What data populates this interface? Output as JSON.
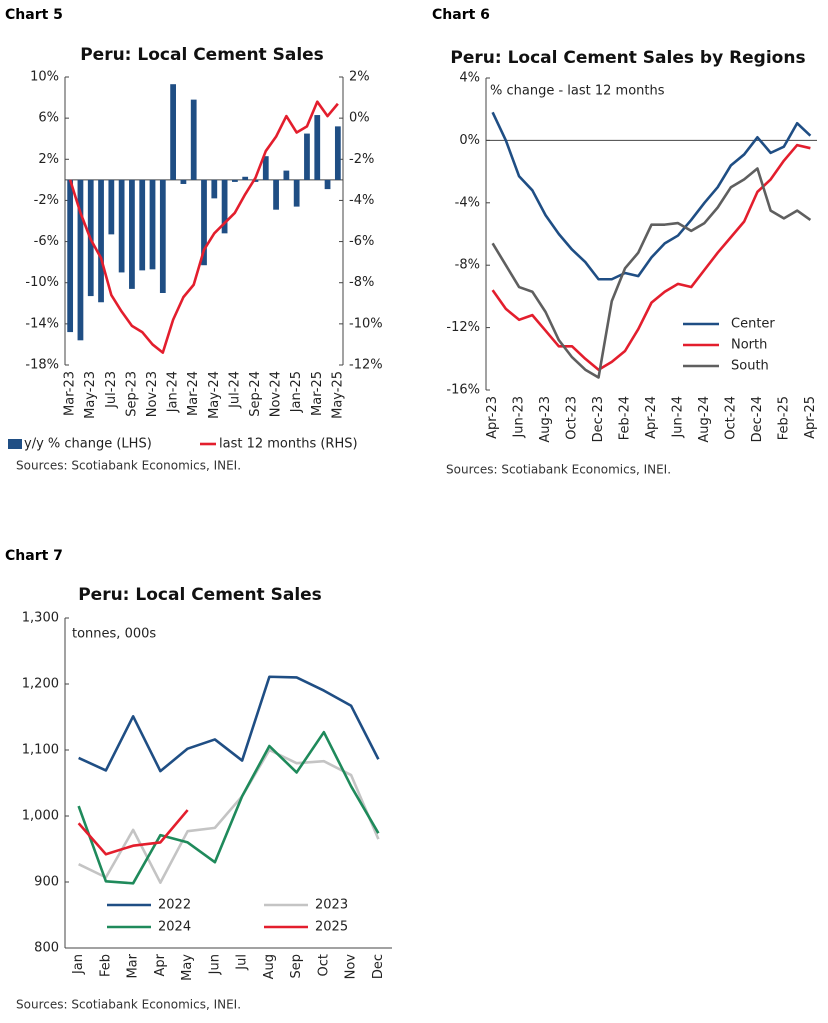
{
  "chart_data": [
    {
      "type": "combo",
      "label": "Chart 5",
      "title": "Peru: Local Cement Sales",
      "source": "Sources: Scotiabank Economics, INEI.",
      "categories": [
        "Mar-23",
        null,
        "May-23",
        null,
        "Jul-23",
        null,
        "Sep-23",
        null,
        "Nov-23",
        null,
        "Jan-24",
        null,
        "Mar-24",
        null,
        "May-24",
        null,
        "Jul-24",
        null,
        "Sep-24",
        null,
        "Nov-24",
        null,
        "Jan-25",
        null,
        "Mar-25",
        null,
        "May-25"
      ],
      "ylim": [
        -18,
        10
      ],
      "yticks": [
        {
          "value": 10,
          "label": "10%"
        },
        {
          "value": 6,
          "label": "6%"
        },
        {
          "value": 2,
          "label": "2%"
        },
        {
          "value": -2,
          "label": "-2%"
        },
        {
          "value": -6,
          "label": "-6%"
        },
        {
          "value": -10,
          "label": "-10%"
        },
        {
          "value": -14,
          "label": "-14%"
        },
        {
          "value": -18,
          "label": "-18%"
        }
      ],
      "y2lim": [
        -12,
        2
      ],
      "y2ticks": [
        {
          "value": 2,
          "label": "2%"
        },
        {
          "value": 0,
          "label": "0%"
        },
        {
          "value": -2,
          "label": "-2%"
        },
        {
          "value": -4,
          "label": "-4%"
        },
        {
          "value": -6,
          "label": "-6%"
        },
        {
          "value": -8,
          "label": "-8%"
        },
        {
          "value": -10,
          "label": "-10%"
        },
        {
          "value": -12,
          "label": "-12%"
        }
      ],
      "series": [
        {
          "name": "y/y % change (LHS)",
          "type": "bar",
          "color": "#1f4e84",
          "values": [
            -14.8,
            -15.6,
            -11.3,
            -11.9,
            -5.3,
            -9.0,
            -10.6,
            -8.8,
            -8.7,
            -11.0,
            9.3,
            -0.4,
            7.8,
            -8.3,
            -1.8,
            -5.2,
            -0.2,
            0.3,
            -0.2,
            2.3,
            -2.9,
            0.9,
            -2.6,
            4.5,
            6.3,
            -0.9,
            5.2
          ]
        },
        {
          "name": "last 12 months (RHS)",
          "type": "line",
          "axis": "y2",
          "color": "#e31e2d",
          "values": [
            -3.0,
            -4.6,
            -5.9,
            -6.8,
            -8.6,
            -9.4,
            -10.1,
            -10.4,
            -11.0,
            -11.4,
            -9.8,
            -8.7,
            -8.1,
            -6.4,
            -5.6,
            -5.1,
            -4.6,
            -3.7,
            -2.9,
            -1.6,
            -0.9,
            0.1,
            -0.7,
            -0.4,
            0.8,
            0.1,
            0.7
          ]
        }
      ]
    },
    {
      "type": "line",
      "label": "Chart 6",
      "title": "Peru: Local Cement Sales by Regions",
      "annotation": "% change - last 12 months",
      "source": "Sources: Scotiabank Economics, INEI.",
      "legend": "lower-right",
      "categories": [
        "Apr-23",
        null,
        "Jun-23",
        null,
        "Aug-23",
        null,
        "Oct-23",
        null,
        "Dec-23",
        null,
        "Feb-24",
        null,
        "Apr-24",
        null,
        "Jun-24",
        null,
        "Aug-24",
        null,
        "Oct-24",
        null,
        "Dec-24",
        null,
        "Feb-25",
        null,
        "Apr-25"
      ],
      "ylim": [
        -16,
        4
      ],
      "yticks": [
        {
          "value": 4,
          "label": "4%"
        },
        {
          "value": 0,
          "label": "0%"
        },
        {
          "value": -4,
          "label": "-4%"
        },
        {
          "value": -8,
          "label": "-8%"
        },
        {
          "value": -12,
          "label": "-12%"
        },
        {
          "value": -16,
          "label": "-16%"
        }
      ],
      "series": [
        {
          "name": "Center",
          "color": "#1f4e84",
          "values": [
            1.8,
            0.0,
            -2.3,
            -3.2,
            -4.8,
            -6.0,
            -7.0,
            -7.8,
            -8.9,
            -8.9,
            -8.5,
            -8.7,
            -7.5,
            -6.6,
            -6.1,
            -5.1,
            -4.0,
            -3.0,
            -1.6,
            -0.9,
            0.2,
            -0.8,
            -0.4,
            1.1,
            0.3
          ]
        },
        {
          "name": "North",
          "color": "#e31e2d",
          "values": [
            -9.6,
            -10.8,
            -11.5,
            -11.2,
            -12.2,
            -13.2,
            -13.2,
            -14.0,
            -14.7,
            -14.2,
            -13.5,
            -12.1,
            -10.4,
            -9.7,
            -9.2,
            -9.4,
            -8.3,
            -7.2,
            -6.2,
            -5.2,
            -3.3,
            -2.5,
            -1.3,
            -0.3,
            -0.5
          ]
        },
        {
          "name": "South",
          "color": "#5f5f5f",
          "values": [
            -6.6,
            -8.0,
            -9.4,
            -9.7,
            -11.0,
            -12.8,
            -13.9,
            -14.7,
            -15.2,
            -10.3,
            -8.2,
            -7.2,
            -5.4,
            -5.4,
            -5.3,
            -5.8,
            -5.3,
            -4.3,
            -3.0,
            -2.5,
            -1.8,
            -4.5,
            -5.0,
            -4.5,
            -5.1
          ]
        }
      ]
    },
    {
      "type": "line",
      "label": "Chart 7",
      "title": "Peru: Local Cement Sales",
      "annotation": "tonnes, 000s",
      "source": "Sources: Scotiabank Economics, INEI.",
      "legend": "lower-left",
      "categories": [
        "Jan",
        "Feb",
        "Mar",
        "Apr",
        "May",
        "Jun",
        "Jul",
        "Aug",
        "Sep",
        "Oct",
        "Nov",
        "Dec"
      ],
      "ylim": [
        800,
        1300
      ],
      "yticks": [
        {
          "value": 1300,
          "label": "1,300"
        },
        {
          "value": 1200,
          "label": "1,200"
        },
        {
          "value": 1100,
          "label": "1,100"
        },
        {
          "value": 1000,
          "label": "1,000"
        },
        900,
        800
      ],
      "series": [
        {
          "name": "2022",
          "color": "#1f4e84",
          "values": [
            1088,
            1069,
            1151,
            1068,
            1102,
            1116,
            1084,
            1211,
            1210,
            1190,
            1167,
            1086
          ]
        },
        {
          "name": "2023",
          "color": "#c4c4c4",
          "values": [
            927,
            907,
            979,
            899,
            977,
            982,
            1030,
            1100,
            1080,
            1083,
            1062,
            965
          ]
        },
        {
          "name": "2024",
          "color": "#1f8a5b",
          "values": [
            1015,
            901,
            898,
            971,
            960,
            930,
            1030,
            1106,
            1066,
            1127,
            1045,
            974
          ]
        },
        {
          "name": "2025",
          "color": "#e31e2d",
          "values": [
            989,
            942,
            955,
            960,
            1009,
            null,
            null,
            null,
            null,
            null,
            null,
            null
          ]
        }
      ]
    }
  ]
}
